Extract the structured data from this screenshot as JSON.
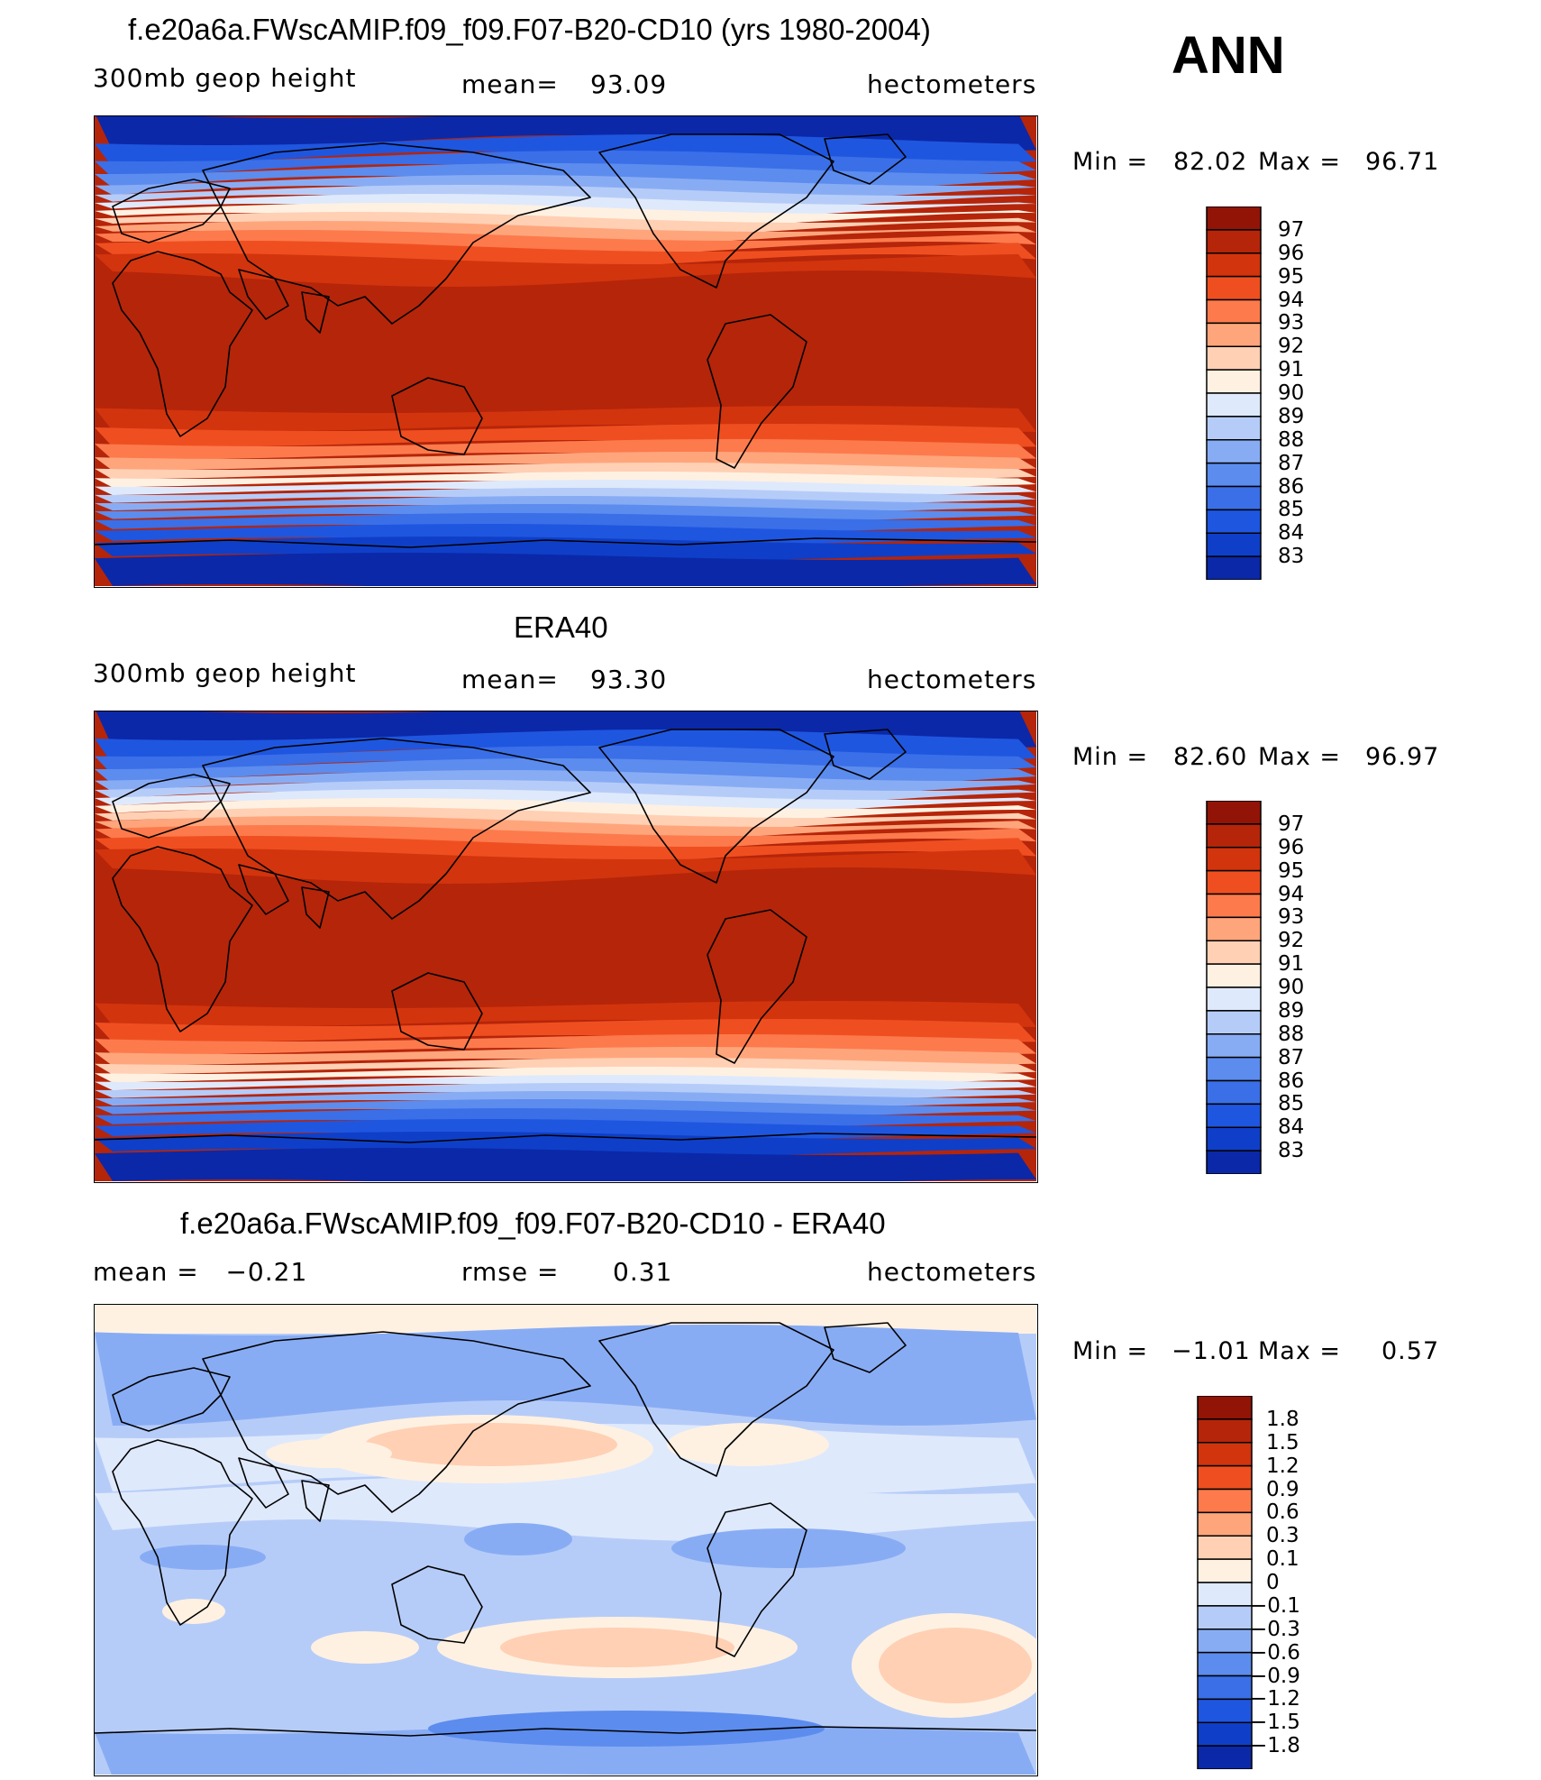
{
  "season": "ANN",
  "panels": [
    {
      "title": "f.e20a6a.FWscAMIP.f09_f09.F07-B20-CD10 (yrs 1980-2004)",
      "left": "300mb geop height",
      "center_label": "mean=",
      "center_value": "93.09",
      "right": "hectometers",
      "min_label": "Min =",
      "min_value": "82.02",
      "max_label": "Max =",
      "max_value": "96.71",
      "colorbar_labels": [
        "97",
        "96",
        "95",
        "94",
        "93",
        "92",
        "91",
        "90",
        "89",
        "88",
        "87",
        "86",
        "85",
        "84",
        "83"
      ],
      "colors": [
        "#0b1a80",
        "#0b28a8",
        "#0f3fc8",
        "#1f56e0",
        "#3a6fe8",
        "#5c8cee",
        "#88acf4",
        "#b6ccf8",
        "#dfe9fc",
        "#fff1e2",
        "#ffd0b4",
        "#ffa57c",
        "#fd7a4c",
        "#ef4f20",
        "#d2340d",
        "#b5250a",
        "#921406"
      ]
    },
    {
      "title": "ERA40",
      "left": "300mb geop height",
      "center_label": "mean=",
      "center_value": "93.30",
      "right": "hectometers",
      "min_label": "Min =",
      "min_value": "82.60",
      "max_label": "Max =",
      "max_value": "96.97",
      "colorbar_labels": [
        "97",
        "96",
        "95",
        "94",
        "93",
        "92",
        "91",
        "90",
        "89",
        "88",
        "87",
        "86",
        "85",
        "84",
        "83"
      ],
      "colors": [
        "#0b1a80",
        "#0b28a8",
        "#0f3fc8",
        "#1f56e0",
        "#3a6fe8",
        "#5c8cee",
        "#88acf4",
        "#b6ccf8",
        "#dfe9fc",
        "#fff1e2",
        "#ffd0b4",
        "#ffa57c",
        "#fd7a4c",
        "#ef4f20",
        "#d2340d",
        "#b5250a",
        "#921406"
      ]
    },
    {
      "title": "f.e20a6a.FWscAMIP.f09_f09.F07-B20-CD10 - ERA40",
      "left": "mean =   −0.21",
      "center_label": "rmse =",
      "center_value": "0.31",
      "right": "hectometers",
      "min_label": "Min =",
      "min_value": "−1.01",
      "max_label": "Max =",
      "max_value": "0.57",
      "colorbar_labels": [
        "1.8",
        "1.5",
        "1.2",
        "0.9",
        "0.6",
        "0.3",
        "0.1",
        "0",
        "−0.1",
        "−0.3",
        "−0.6",
        "−0.9",
        "−1.2",
        "−1.5",
        "−1.8"
      ],
      "colors": [
        "#0b1a80",
        "#0b28a8",
        "#0f3fc8",
        "#1f56e0",
        "#3a6fe8",
        "#5c8cee",
        "#88acf4",
        "#b6ccf8",
        "#dfe9fc",
        "#fff1e2",
        "#ffd0b4",
        "#ffa57c",
        "#fd7a4c",
        "#ef4f20",
        "#d2340d",
        "#b5250a",
        "#921406"
      ]
    }
  ]
}
